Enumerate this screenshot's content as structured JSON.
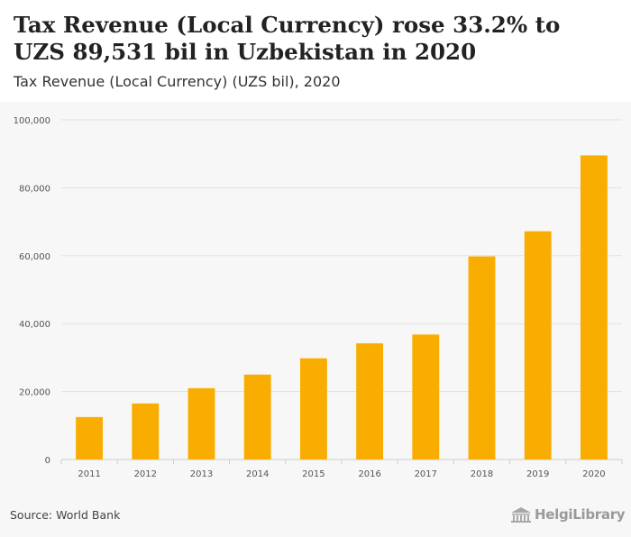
{
  "header": {
    "title": "Tax Revenue (Local Currency) rose 33.2% to UZS 89,531 bil in Uzbekistan in 2020",
    "subtitle": "Tax Revenue (Local Currency) (UZS bil), 2020"
  },
  "footer": {
    "source": "Source: World Bank",
    "brand": "HelgiLibrary",
    "brand_icon": "building-icon"
  },
  "colors": {
    "bar": "#f9ad00",
    "grid": "#e2e2e2",
    "axis_text": "#555555"
  },
  "chart_data": {
    "type": "bar",
    "categories": [
      "2011",
      "2012",
      "2013",
      "2014",
      "2015",
      "2016",
      "2017",
      "2018",
      "2019",
      "2020"
    ],
    "values": [
      12500,
      16500,
      21000,
      25000,
      29800,
      34200,
      36800,
      59800,
      67200,
      89531
    ],
    "ylim": [
      0,
      100000
    ],
    "yticks": [
      0,
      20000,
      40000,
      60000,
      80000,
      100000
    ],
    "ytick_labels": [
      "0",
      "20,000",
      "40,000",
      "60,000",
      "80,000",
      "100,000"
    ],
    "grid": true,
    "xlabel": "",
    "ylabel": ""
  }
}
